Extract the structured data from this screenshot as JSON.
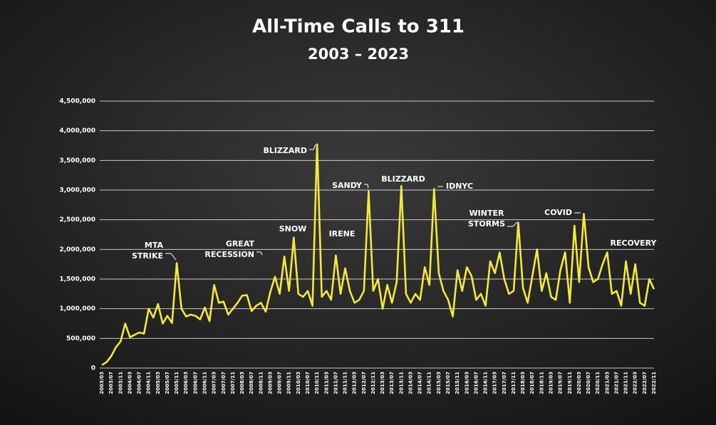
{
  "chart_data": {
    "type": "line",
    "title": "All-Time Calls to 311",
    "subtitle": "2003 – 2023",
    "color": "#f5e83c",
    "grid": true,
    "ylim": [
      0,
      4500000
    ],
    "yticks": [
      0,
      {
        "value": 500000,
        "label": "500,000"
      },
      {
        "value": 1000000,
        "label": "1,000,000"
      },
      {
        "value": 1500000,
        "label": "1,500,000"
      },
      {
        "value": 2000000,
        "label": "2,000,000"
      },
      {
        "value": 2500000,
        "label": "2,500,000"
      },
      {
        "value": 3000000,
        "label": "3,000,000"
      },
      {
        "value": 3500000,
        "label": "3,500,000"
      },
      {
        "value": 4000000,
        "label": "4,000,000"
      },
      {
        "value": 4500000,
        "label": "4,500,000"
      }
    ],
    "categories": [
      "2003/03",
      null,
      "2003/07",
      null,
      "2003/11",
      null,
      "2004/03",
      null,
      "2004/07",
      null,
      "2004/11",
      null,
      "2005/03",
      null,
      "2005/07",
      null,
      "2005/11",
      null,
      "2006/03",
      null,
      "2006/07",
      null,
      "2006/11",
      null,
      "2007/03",
      null,
      "2007/07",
      null,
      "2007/11",
      null,
      "2008/03",
      null,
      "2008/07",
      null,
      "2008/11",
      null,
      "2009/03",
      null,
      "2009/07",
      null,
      "2009/11",
      null,
      "2010/03",
      null,
      "2010/07",
      null,
      "2010/11",
      null,
      "2011/03",
      null,
      "2011/07",
      null,
      "2011/11",
      null,
      "2012/03",
      null,
      "2012/07",
      null,
      "2012/11",
      null,
      "2013/03",
      null,
      "2013/07",
      null,
      "2013/11",
      null,
      "2014/03",
      null,
      "2014/07",
      null,
      "2014/11",
      null,
      "2015/03",
      null,
      "2015/07",
      null,
      "2015/11",
      null,
      "2016/03",
      null,
      "2016/07",
      null,
      "2016/11",
      null,
      "2017/03",
      null,
      "2017/07",
      null,
      "2017/11",
      null,
      "2018/03",
      null,
      "2018/07",
      null,
      "2018/11",
      null,
      "2019/03",
      null,
      "2019/07",
      null,
      "2019/11",
      null,
      "2020/03",
      null,
      "2020/07",
      null,
      "2020/11",
      null,
      "2021/03",
      null,
      "2021/07",
      null,
      "2021/11",
      null,
      "2022/03",
      null,
      "2022/07",
      null,
      "2022/11"
    ],
    "values": [
      50000,
      100000,
      200000,
      350000,
      450000,
      750000,
      520000,
      560000,
      600000,
      580000,
      1000000,
      850000,
      1080000,
      750000,
      880000,
      760000,
      1770000,
      1000000,
      870000,
      900000,
      880000,
      820000,
      1020000,
      790000,
      1400000,
      1100000,
      1120000,
      900000,
      1000000,
      1100000,
      1220000,
      1230000,
      960000,
      1050000,
      1100000,
      950000,
      1280000,
      1540000,
      1250000,
      1880000,
      1300000,
      2200000,
      1250000,
      1200000,
      1300000,
      1050000,
      3770000,
      1200000,
      1300000,
      1150000,
      1900000,
      1250000,
      1680000,
      1300000,
      1100000,
      1150000,
      1300000,
      2980000,
      1300000,
      1500000,
      1000000,
      1400000,
      1100000,
      1450000,
      3070000,
      1250000,
      1100000,
      1250000,
      1150000,
      1700000,
      1400000,
      3020000,
      1600000,
      1300000,
      1150000,
      870000,
      1650000,
      1300000,
      1700000,
      1550000,
      1150000,
      1250000,
      1050000,
      1800000,
      1600000,
      1950000,
      1500000,
      1250000,
      1300000,
      2450000,
      1350000,
      1100000,
      1550000,
      2000000,
      1300000,
      1600000,
      1200000,
      1150000,
      1650000,
      1950000,
      1100000,
      2400000,
      1450000,
      2600000,
      1700000,
      1450000,
      1500000,
      1750000,
      1950000,
      1250000,
      1300000,
      1050000,
      1800000,
      1250000,
      1750000,
      1100000,
      1050000,
      1500000,
      1330000
    ],
    "annotations": [
      {
        "text": [
          "MTA",
          "STRIKE"
        ]
      },
      {
        "text": [
          "GREAT",
          "RECESSION"
        ]
      },
      {
        "text": [
          "SNOW"
        ]
      },
      {
        "text": [
          "BLIZZARD"
        ]
      },
      {
        "text": [
          "IRENE"
        ]
      },
      {
        "text": [
          "SANDY"
        ]
      },
      {
        "text": [
          "BLIZZARD"
        ]
      },
      {
        "text": [
          "IDNYC"
        ]
      },
      {
        "text": [
          "WINTER",
          "STORMS"
        ]
      },
      {
        "text": [
          "COVID"
        ]
      },
      {
        "text": [
          "RECOVERY"
        ]
      }
    ]
  }
}
